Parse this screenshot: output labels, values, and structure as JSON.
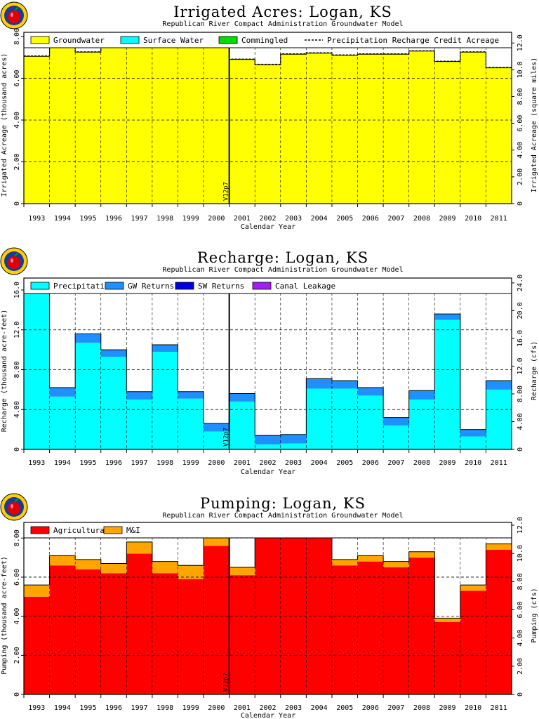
{
  "chart_data": [
    {
      "type": "area",
      "title": "Irrigated Acres: Logan, KS",
      "subtitle": "Republican River Compact Administration Groundwater Model",
      "xlabel": "Calendar Year",
      "ylabel": "Irrigated Acreage (thousand acres)",
      "ylabel_right": "Irrigated Acreage (square miles)",
      "categories": [
        "1993",
        "1994",
        "1995",
        "1996",
        "1997",
        "1998",
        "1999",
        "2000",
        "2001",
        "2002",
        "2003",
        "2004",
        "2005",
        "2006",
        "2007",
        "2008",
        "2009",
        "2010",
        "2011"
      ],
      "ylim": [
        0,
        8.2
      ],
      "yticks": [
        0,
        2,
        4,
        6,
        8
      ],
      "ytick_labels": [
        "0",
        "2.00",
        "4.00",
        "6.00",
        "8.00"
      ],
      "y2lim": [
        0,
        12.8
      ],
      "y2ticks": [
        0,
        2,
        4,
        6,
        8,
        10,
        12
      ],
      "y2tick_labels": [
        "0",
        "2.00",
        "4.00",
        "6.00",
        "8.00",
        "10.0",
        "12.0"
      ],
      "grid": true,
      "legend": "top",
      "series": [
        {
          "name": "Groundwater",
          "color": "#ffff00",
          "values": [
            7.05,
            7.48,
            7.25,
            7.56,
            7.7,
            7.9,
            7.52,
            7.7,
            6.9,
            6.65,
            7.15,
            7.2,
            7.1,
            7.15,
            7.15,
            7.3,
            6.8,
            7.25,
            6.5
          ]
        },
        {
          "name": "Surface Water",
          "color": "#00ffff",
          "values": [
            0,
            0,
            0,
            0,
            0,
            0,
            0,
            0,
            0,
            0,
            0,
            0,
            0,
            0,
            0,
            0,
            0,
            0,
            0
          ]
        },
        {
          "name": "Commingled",
          "color": "#00dd00",
          "values": [
            0,
            0,
            0,
            0,
            0,
            0,
            0,
            0,
            0,
            0,
            0,
            0,
            0,
            0,
            0,
            0,
            0,
            0,
            0
          ]
        },
        {
          "name": "Precipitation Recharge Credit Acreage",
          "style": "dashed",
          "values": [
            7.07,
            7.5,
            7.27,
            7.58,
            7.72,
            7.92,
            7.54,
            7.72,
            6.92,
            6.67,
            7.17,
            7.22,
            7.12,
            7.17,
            7.17,
            7.32,
            6.82,
            7.27,
            6.52
          ]
        }
      ],
      "annotation": {
        "text": "V12p7",
        "x": "2001"
      }
    },
    {
      "type": "area",
      "title": "Recharge: Logan, KS",
      "subtitle": "Republican River Compact Administration Groundwater Model",
      "xlabel": "Calendar Year",
      "ylabel": "Recharge (thousand acre-feet)",
      "ylabel_right": "Recharge (cfs)",
      "categories": [
        "1993",
        "1994",
        "1995",
        "1996",
        "1997",
        "1998",
        "1999",
        "2000",
        "2001",
        "2002",
        "2003",
        "2004",
        "2005",
        "2006",
        "2007",
        "2008",
        "2009",
        "2010",
        "2011"
      ],
      "ylim": [
        0,
        17.2
      ],
      "yticks": [
        0,
        4,
        8,
        12,
        16
      ],
      "ytick_labels": [
        "0",
        "4.00",
        "8.00",
        "12.0",
        "16.0"
      ],
      "y2lim": [
        0,
        24.7
      ],
      "y2ticks": [
        0,
        4,
        8,
        12,
        16,
        20,
        24
      ],
      "y2tick_labels": [
        "0",
        "4.00",
        "8.00",
        "12.0",
        "16.0",
        "20.0",
        "24.0"
      ],
      "grid": true,
      "legend": "top",
      "series": [
        {
          "name": "Precipitation",
          "color": "#00ffff",
          "values": [
            16.2,
            5.3,
            10.7,
            9.3,
            5.0,
            9.8,
            5.1,
            1.8,
            4.8,
            0.5,
            0.6,
            6.1,
            6.1,
            5.4,
            2.4,
            5.0,
            13.0,
            1.3,
            6.0
          ]
        },
        {
          "name": "GW Returns",
          "color": "#1e90ff",
          "values": [
            0.7,
            0.9,
            0.9,
            0.7,
            0.8,
            0.7,
            0.7,
            0.8,
            0.8,
            0.9,
            0.9,
            1.0,
            0.8,
            0.8,
            0.8,
            0.9,
            0.6,
            0.7,
            0.9
          ]
        },
        {
          "name": "SW Returns",
          "color": "#0000dd",
          "values": [
            0,
            0,
            0,
            0,
            0,
            0,
            0,
            0,
            0,
            0,
            0,
            0,
            0,
            0,
            0,
            0,
            0,
            0,
            0
          ]
        },
        {
          "name": "Canal Leakage",
          "color": "#a020f0",
          "values": [
            0,
            0,
            0,
            0,
            0,
            0,
            0,
            0,
            0,
            0,
            0,
            0,
            0,
            0,
            0,
            0,
            0,
            0,
            0
          ]
        }
      ],
      "annotation": {
        "text": "V12p7",
        "x": "2001"
      }
    },
    {
      "type": "area",
      "title": "Pumping: Logan, KS",
      "subtitle": "Republican River Compact Administration Groundwater Model",
      "xlabel": "Calendar Year",
      "ylabel": "Pumping (thousand acre-feet)",
      "ylabel_right": "Pumping (cfs)",
      "categories": [
        "1993",
        "1994",
        "1995",
        "1996",
        "1997",
        "1998",
        "1999",
        "2000",
        "2001",
        "2002",
        "2003",
        "2004",
        "2005",
        "2006",
        "2007",
        "2008",
        "2009",
        "2010",
        "2011"
      ],
      "ylim": [
        0,
        8.8
      ],
      "yticks": [
        0,
        2,
        4,
        6,
        8
      ],
      "ytick_labels": [
        "0",
        "2.00",
        "4.00",
        "6.00",
        "8.00"
      ],
      "y2lim": [
        0,
        12.2
      ],
      "y2ticks": [
        0,
        2,
        4,
        6,
        8,
        10,
        12
      ],
      "y2tick_labels": [
        "0",
        "2.00",
        "4.00",
        "6.00",
        "8.00",
        "10.0",
        "12.0"
      ],
      "grid": true,
      "legend": "top",
      "series": [
        {
          "name": "Agricultural",
          "color": "#ff0000",
          "values": [
            5.0,
            6.6,
            6.4,
            6.2,
            7.2,
            6.2,
            5.9,
            7.6,
            6.1,
            8.0,
            8.0,
            8.2,
            6.6,
            6.8,
            6.5,
            7.0,
            3.7,
            5.3,
            7.4
          ]
        },
        {
          "name": "M&I",
          "color": "#ffa500",
          "values": [
            0.6,
            0.5,
            0.5,
            0.5,
            0.6,
            0.6,
            0.7,
            1.0,
            0.4,
            0.1,
            0.4,
            0.3,
            0.3,
            0.3,
            0.3,
            0.3,
            0.2,
            0.3,
            0.3
          ]
        }
      ],
      "annotation": {
        "text": "V12p7",
        "x": "2001"
      }
    }
  ]
}
